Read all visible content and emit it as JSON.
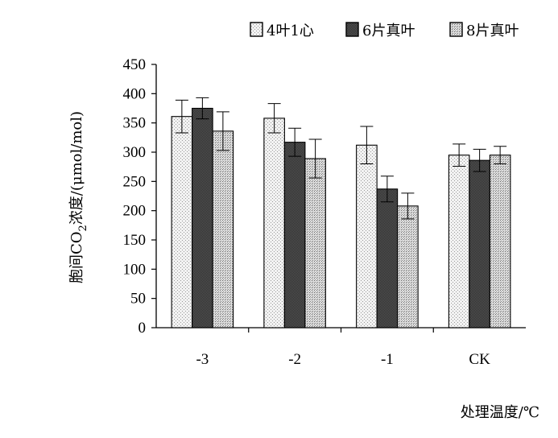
{
  "chart_data": {
    "type": "bar",
    "categories": [
      "-3",
      "-2",
      "-1",
      "CK"
    ],
    "series": [
      {
        "name": "4叶1心",
        "values": [
          361,
          358,
          312,
          295
        ],
        "errors": [
          28,
          25,
          32,
          19
        ],
        "fill": "light-dotted"
      },
      {
        "name": "6片真叶",
        "values": [
          375,
          317,
          237,
          286
        ],
        "errors": [
          18,
          24,
          22,
          19
        ],
        "fill": "dark-checkered"
      },
      {
        "name": "8片真叶",
        "values": [
          336,
          289,
          208,
          295
        ],
        "errors": [
          33,
          33,
          22,
          15
        ],
        "fill": "medium-dotted"
      }
    ],
    "ylabel_prefix": "胞间CO",
    "ylabel_sub": "2",
    "ylabel_suffix": "浓度/(μmol/mol)",
    "xlabel": "处理温度/℃",
    "ylim": [
      0,
      450
    ],
    "yticks": [
      0,
      50,
      100,
      150,
      200,
      250,
      300,
      350,
      400,
      450
    ],
    "legend_position": "top-right",
    "grid": false
  }
}
